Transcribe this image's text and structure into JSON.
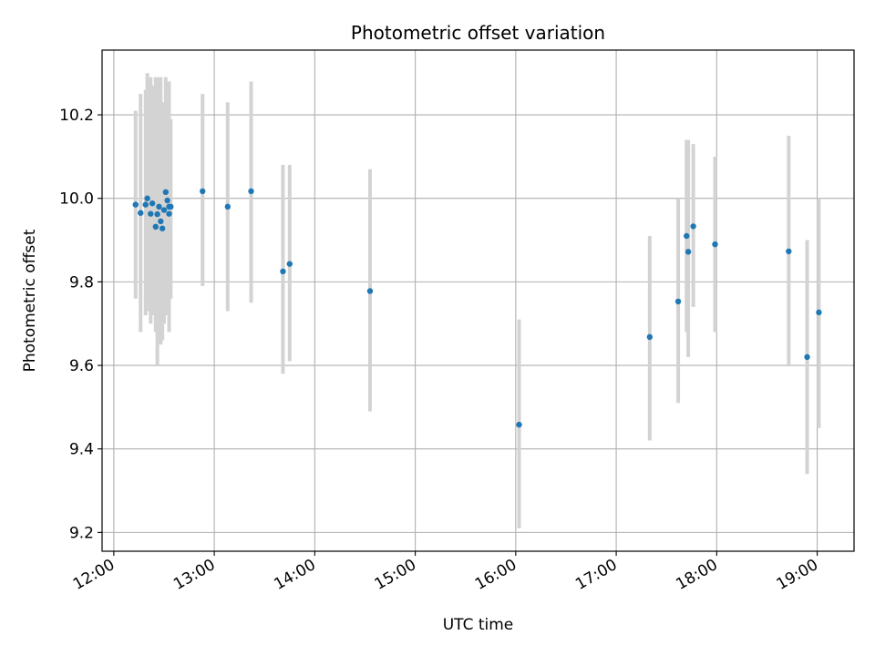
{
  "chart_data": {
    "type": "scatter",
    "title": "Photometric offset variation",
    "xlabel": "UTC time",
    "ylabel": "Photometric offset",
    "x_ticks": [
      "12:00",
      "13:00",
      "14:00",
      "15:00",
      "16:00",
      "17:00",
      "18:00",
      "19:00"
    ],
    "y_ticks": [
      "9.2",
      "9.4",
      "9.6",
      "9.8",
      "10.0",
      "10.2"
    ],
    "xlim": [
      "11:53",
      "19:22"
    ],
    "ylim": [
      9.155,
      10.355
    ],
    "grid": true,
    "error_bar_color": "#d3d3d3",
    "marker_color": "#1f77b4",
    "points": [
      {
        "x": "12:13",
        "y": 9.985,
        "err_low": 9.76,
        "err_high": 10.21
      },
      {
        "x": "12:16",
        "y": 9.965,
        "err_low": 9.68,
        "err_high": 10.25
      },
      {
        "x": "12:19",
        "y": 9.985,
        "err_low": 9.72,
        "err_high": 10.26
      },
      {
        "x": "12:20",
        "y": 10.0,
        "err_low": 9.73,
        "err_high": 10.3
      },
      {
        "x": "12:22",
        "y": 9.963,
        "err_low": 9.7,
        "err_high": 10.29
      },
      {
        "x": "12:23",
        "y": 9.988,
        "err_low": 9.72,
        "err_high": 10.27
      },
      {
        "x": "12:25",
        "y": 9.932,
        "err_low": 9.68,
        "err_high": 10.29
      },
      {
        "x": "12:26",
        "y": 9.962,
        "err_low": 9.6,
        "err_high": 10.24
      },
      {
        "x": "12:27",
        "y": 9.98,
        "err_low": 9.72,
        "err_high": 10.29
      },
      {
        "x": "12:28",
        "y": 9.945,
        "err_low": 9.65,
        "err_high": 10.29
      },
      {
        "x": "12:29",
        "y": 9.928,
        "err_low": 9.66,
        "err_high": 10.23
      },
      {
        "x": "12:30",
        "y": 9.972,
        "err_low": 9.7,
        "err_high": 10.21
      },
      {
        "x": "12:31",
        "y": 10.015,
        "err_low": 9.72,
        "err_high": 10.29
      },
      {
        "x": "12:32",
        "y": 9.995,
        "err_low": 9.74,
        "err_high": 10.2
      },
      {
        "x": "12:33",
        "y": 9.98,
        "err_low": 9.68,
        "err_high": 10.28
      },
      {
        "x": "12:33",
        "y": 9.963,
        "err_low": 9.75,
        "err_high": 10.19
      },
      {
        "x": "12:34",
        "y": 9.98,
        "err_low": 9.76,
        "err_high": 10.19
      },
      {
        "x": "12:53",
        "y": 10.017,
        "err_low": 9.79,
        "err_high": 10.25
      },
      {
        "x": "13:08",
        "y": 9.98,
        "err_low": 9.73,
        "err_high": 10.23
      },
      {
        "x": "13:22",
        "y": 10.017,
        "err_low": 9.75,
        "err_high": 10.28
      },
      {
        "x": "13:41",
        "y": 9.825,
        "err_low": 9.58,
        "err_high": 10.08
      },
      {
        "x": "13:45",
        "y": 9.843,
        "err_low": 9.61,
        "err_high": 10.08
      },
      {
        "x": "14:33",
        "y": 9.778,
        "err_low": 9.49,
        "err_high": 10.07
      },
      {
        "x": "16:02",
        "y": 9.458,
        "err_low": 9.21,
        "err_high": 9.71
      },
      {
        "x": "17:20",
        "y": 9.668,
        "err_low": 9.42,
        "err_high": 9.91
      },
      {
        "x": "17:37",
        "y": 9.753,
        "err_low": 9.51,
        "err_high": 10.0
      },
      {
        "x": "17:42",
        "y": 9.91,
        "err_low": 9.68,
        "err_high": 10.14
      },
      {
        "x": "17:43",
        "y": 9.872,
        "err_low": 9.62,
        "err_high": 10.14
      },
      {
        "x": "17:46",
        "y": 9.933,
        "err_low": 9.74,
        "err_high": 10.13
      },
      {
        "x": "17:59",
        "y": 9.89,
        "err_low": 9.68,
        "err_high": 10.1
      },
      {
        "x": "18:43",
        "y": 9.873,
        "err_low": 9.6,
        "err_high": 10.15
      },
      {
        "x": "18:54",
        "y": 9.62,
        "err_low": 9.34,
        "err_high": 9.9
      },
      {
        "x": "19:01",
        "y": 9.727,
        "err_low": 9.45,
        "err_high": 10.0
      }
    ]
  }
}
